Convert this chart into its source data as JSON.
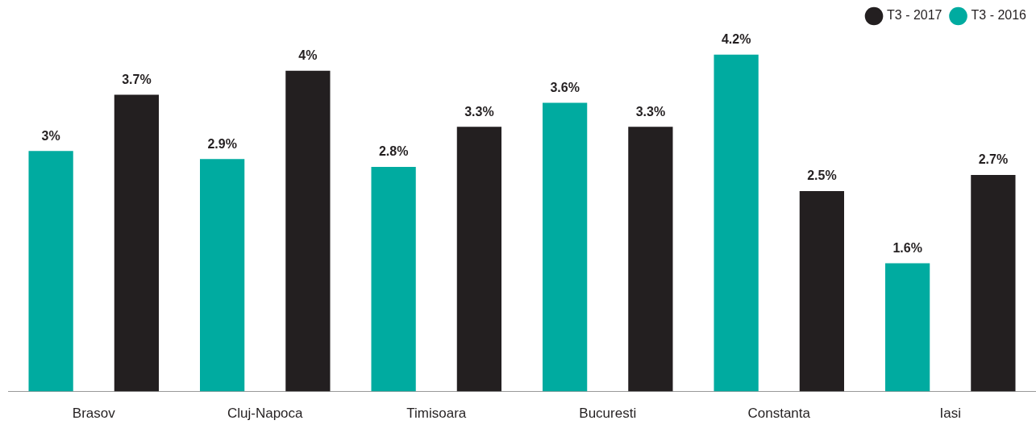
{
  "chart_data": {
    "type": "bar",
    "categories": [
      "Brasov",
      "Cluj-Napoca",
      "Timisoara",
      "Bucuresti",
      "Constanta",
      "Iasi"
    ],
    "series": [
      {
        "name": "T3 - 2016",
        "color": "#00aba0",
        "values": [
          3,
          2.9,
          2.8,
          3.6,
          4.2,
          1.6
        ],
        "value_labels": [
          "3%",
          "2.9%",
          "2.8%",
          "3.6%",
          "4.2%",
          "1.6%"
        ]
      },
      {
        "name": "T3 - 2017",
        "color": "#231f20",
        "values": [
          3.7,
          4,
          3.3,
          3.3,
          2.5,
          2.7
        ],
        "value_labels": [
          "3.7%",
          "4%",
          "3.3%",
          "3.3%",
          "2.5%",
          "2.7%"
        ]
      }
    ],
    "legend": "top right",
    "grid": false
  }
}
